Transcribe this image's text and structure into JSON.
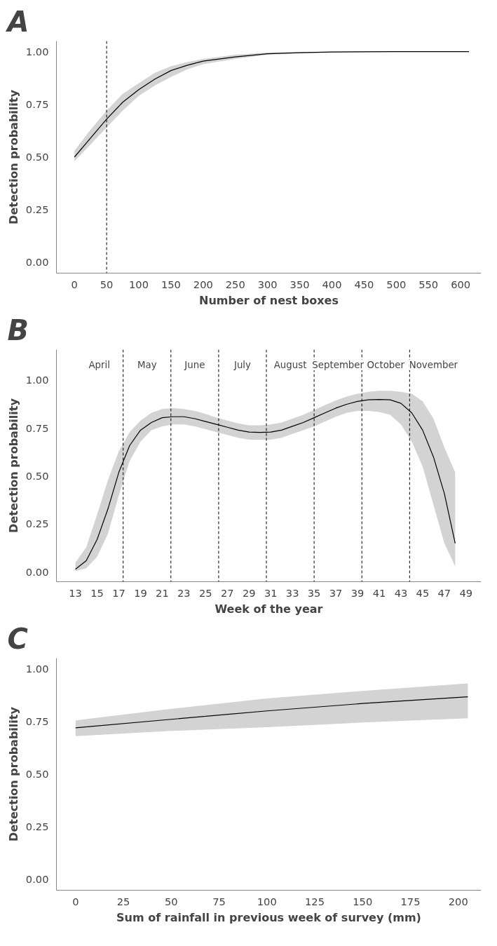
{
  "chart_data": [
    {
      "type": "line",
      "title": "A",
      "xlabel": "Number of nest boxes",
      "ylabel": "Detection probability",
      "xlim": [
        -28,
        632
      ],
      "ylim": [
        -0.05,
        1.05
      ],
      "xticks": [
        0,
        50,
        100,
        150,
        200,
        250,
        300,
        350,
        400,
        450,
        500,
        550,
        600
      ],
      "yticks": [
        {
          "value": 0,
          "label": "0.00"
        },
        {
          "value": 0.25,
          "label": "0.25"
        },
        {
          "value": 0.5,
          "label": "0.50"
        },
        {
          "value": 0.75,
          "label": "0.75"
        },
        {
          "value": 1,
          "label": "1.00"
        }
      ],
      "x": [
        0,
        25,
        50,
        75,
        100,
        125,
        150,
        175,
        200,
        250,
        300,
        350,
        400,
        500,
        613
      ],
      "series": [
        {
          "color": "#000000",
          "values": [
            0.5,
            0.59,
            0.68,
            0.76,
            0.82,
            0.87,
            0.91,
            0.935,
            0.955,
            0.975,
            0.99,
            0.995,
            0.998,
            1.0,
            1.0
          ],
          "lower": [
            0.48,
            0.56,
            0.64,
            0.72,
            0.79,
            0.84,
            0.88,
            0.915,
            0.94,
            0.965,
            0.985,
            0.992,
            0.996,
            0.999,
            0.999
          ],
          "upper": [
            0.53,
            0.63,
            0.72,
            0.8,
            0.85,
            0.9,
            0.93,
            0.95,
            0.965,
            0.985,
            0.995,
            0.998,
            0.999,
            1.0,
            1.0
          ]
        }
      ],
      "ref_lines": [
        {
          "axis": "x",
          "value": 50,
          "line_style": "dashed",
          "color": "#000000"
        }
      ]
    },
    {
      "type": "line",
      "title": "B",
      "xlabel": "Week of the year",
      "ylabel": "Detection probability",
      "xlim": [
        11.25,
        50.4
      ],
      "ylim": [
        -0.05,
        1.16
      ],
      "xticks": [
        13,
        15,
        17,
        19,
        21,
        23,
        25,
        27,
        29,
        31,
        33,
        35,
        37,
        39,
        41,
        43,
        45,
        47,
        49
      ],
      "yticks": [
        {
          "value": 0,
          "label": "0.00"
        },
        {
          "value": 0.25,
          "label": "0.25"
        },
        {
          "value": 0.5,
          "label": "0.50"
        },
        {
          "value": 0.75,
          "label": "0.75"
        },
        {
          "value": 1,
          "label": "1.00"
        }
      ],
      "x": [
        13,
        14,
        15,
        16,
        17,
        18,
        19,
        20,
        21,
        22,
        23,
        24,
        25,
        26,
        27,
        28,
        29,
        30,
        31,
        32,
        33,
        34,
        35,
        36,
        37,
        38,
        39,
        40,
        41,
        42,
        43,
        44,
        45,
        46,
        47,
        48
      ],
      "series": [
        {
          "color": "#000000",
          "values": [
            0.015,
            0.06,
            0.17,
            0.33,
            0.52,
            0.66,
            0.74,
            0.78,
            0.805,
            0.81,
            0.81,
            0.8,
            0.785,
            0.77,
            0.755,
            0.74,
            0.73,
            0.728,
            0.73,
            0.74,
            0.76,
            0.78,
            0.805,
            0.83,
            0.855,
            0.875,
            0.89,
            0.898,
            0.9,
            0.898,
            0.88,
            0.83,
            0.74,
            0.6,
            0.41,
            0.15
          ],
          "lower": [
            0.005,
            0.02,
            0.08,
            0.2,
            0.4,
            0.58,
            0.68,
            0.74,
            0.76,
            0.77,
            0.77,
            0.76,
            0.745,
            0.73,
            0.715,
            0.7,
            0.69,
            0.69,
            0.69,
            0.7,
            0.72,
            0.74,
            0.76,
            0.785,
            0.81,
            0.83,
            0.84,
            0.84,
            0.835,
            0.82,
            0.77,
            0.68,
            0.55,
            0.35,
            0.15,
            0.03
          ],
          "upper": [
            0.05,
            0.13,
            0.3,
            0.48,
            0.63,
            0.73,
            0.79,
            0.83,
            0.85,
            0.855,
            0.85,
            0.84,
            0.825,
            0.805,
            0.79,
            0.775,
            0.765,
            0.765,
            0.77,
            0.78,
            0.8,
            0.82,
            0.845,
            0.87,
            0.895,
            0.915,
            0.93,
            0.94,
            0.945,
            0.945,
            0.94,
            0.93,
            0.89,
            0.8,
            0.65,
            0.52
          ]
        }
      ],
      "ref_lines": [
        {
          "axis": "x",
          "value": 17.4,
          "line_style": "dashed",
          "color": "#000000"
        },
        {
          "axis": "x",
          "value": 21.8,
          "line_style": "dashed",
          "color": "#000000"
        },
        {
          "axis": "x",
          "value": 26.2,
          "line_style": "dashed",
          "color": "#000000"
        },
        {
          "axis": "x",
          "value": 30.6,
          "line_style": "dashed",
          "color": "#000000"
        },
        {
          "axis": "x",
          "value": 35.0,
          "line_style": "dashed",
          "color": "#000000"
        },
        {
          "axis": "x",
          "value": 39.4,
          "line_style": "dashed",
          "color": "#000000"
        },
        {
          "axis": "x",
          "value": 43.8,
          "line_style": "dashed",
          "color": "#000000"
        }
      ],
      "annotations": [
        "April",
        "May",
        "June",
        "July",
        "August",
        "September",
        "October",
        "November"
      ]
    },
    {
      "type": "line",
      "title": "C",
      "xlabel": "Sum of rainfall in previous week of survey (mm)",
      "ylabel": "Detection probability",
      "xlim": [
        -10,
        212
      ],
      "ylim": [
        -0.05,
        1.05
      ],
      "xticks": [
        0,
        25,
        50,
        75,
        100,
        125,
        150,
        175,
        200
      ],
      "yticks": [
        {
          "value": 0,
          "label": "0.00"
        },
        {
          "value": 0.25,
          "label": "0.25"
        },
        {
          "value": 0.5,
          "label": "0.50"
        },
        {
          "value": 0.75,
          "label": "0.75"
        },
        {
          "value": 1,
          "label": "1.00"
        }
      ],
      "x": [
        0,
        50,
        100,
        150,
        205
      ],
      "series": [
        {
          "color": "#000000",
          "values": [
            0.72,
            0.76,
            0.8,
            0.835,
            0.867
          ],
          "lower": [
            0.68,
            0.705,
            0.723,
            0.745,
            0.765
          ],
          "upper": [
            0.755,
            0.81,
            0.859,
            0.895,
            0.93
          ]
        }
      ]
    }
  ]
}
